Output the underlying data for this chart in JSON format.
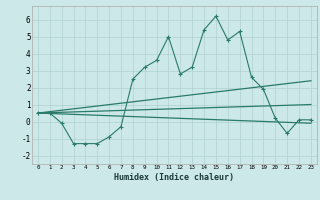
{
  "xlabel": "Humidex (Indice chaleur)",
  "background_color": "#cce8e8",
  "grid_color": "#b0d0d0",
  "line_color": "#2a7a6a",
  "xlim": [
    -0.5,
    23.5
  ],
  "ylim": [
    -2.5,
    6.8
  ],
  "yticks": [
    -2,
    -1,
    0,
    1,
    2,
    3,
    4,
    5,
    6
  ],
  "xticks": [
    0,
    1,
    2,
    3,
    4,
    5,
    6,
    7,
    8,
    9,
    10,
    11,
    12,
    13,
    14,
    15,
    16,
    17,
    18,
    19,
    20,
    21,
    22,
    23
  ],
  "series1_x": [
    0,
    1,
    2,
    3,
    4,
    5,
    6,
    7,
    8,
    9,
    10,
    11,
    12,
    13,
    14,
    15,
    16,
    17,
    18,
    19,
    20,
    21,
    22,
    23
  ],
  "series1_y": [
    0.5,
    0.5,
    -0.1,
    -1.3,
    -1.3,
    -1.3,
    -0.9,
    -0.3,
    2.5,
    3.2,
    3.6,
    5.0,
    2.8,
    3.2,
    5.4,
    6.2,
    4.8,
    5.3,
    2.6,
    1.9,
    0.2,
    -0.7,
    0.1,
    0.1
  ],
  "series2_x": [
    0,
    23
  ],
  "series2_y": [
    0.5,
    1.0
  ],
  "series3_x": [
    0,
    23
  ],
  "series3_y": [
    0.5,
    2.4
  ],
  "series4_x": [
    0,
    23
  ],
  "series4_y": [
    0.5,
    -0.1
  ]
}
